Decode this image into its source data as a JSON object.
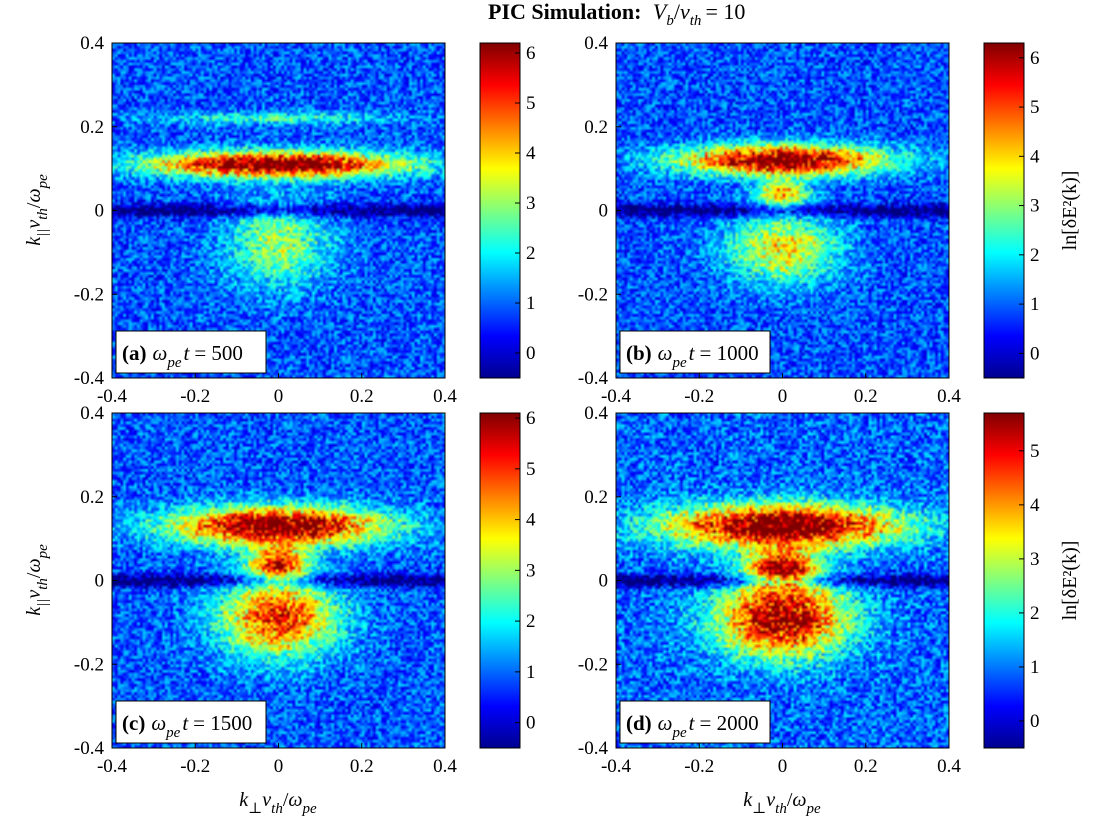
{
  "title": {
    "prefix": "PIC Simulation:",
    "expr": {
      "v1": "V",
      "v1sub": "b",
      "v2": "v",
      "v2sub": "th",
      "rhs": "= 10"
    }
  },
  "axes": {
    "x_label": {
      "k": "k",
      "sub1": "⊥",
      "v": "v",
      "sub2": "th",
      "w": "ω",
      "sub3": "pe"
    },
    "y_label": {
      "k": "k",
      "sub1": "||",
      "v": "v",
      "sub2": "th",
      "w": "ω",
      "sub3": "pe"
    },
    "x_ticks": [
      "-0.4",
      "-0.2",
      "0",
      "0.2",
      "0.4"
    ],
    "y_ticks": [
      "-0.4",
      "-0.2",
      "0",
      "0.2",
      "0.4"
    ]
  },
  "colorbar_label": "ln[δE²(k)]",
  "panels": [
    {
      "tag": "(a)",
      "value": "= 500"
    },
    {
      "tag": "(b)",
      "value": "= 1000"
    },
    {
      "tag": "(c)",
      "value": "= 1500"
    },
    {
      "tag": "(d)",
      "value": "= 2000"
    }
  ],
  "colors": {
    "low": "#00008f",
    "high": "#800000"
  },
  "chart_data": [
    {
      "type": "heatmap",
      "panel": "(a)",
      "x_range": [
        -0.4,
        0.4
      ],
      "y_range": [
        -0.4,
        0.4
      ],
      "colormap": "jet",
      "color_range": [
        -0.5,
        6.2
      ],
      "colorbar_ticks": [
        "0",
        "1",
        "2",
        "3",
        "4",
        "5",
        "6"
      ],
      "features": [
        {
          "kpar": 0.11,
          "kperp_width": 0.3,
          "kpar_width": 0.03,
          "peak": 6.0
        },
        {
          "kpar": 0.22,
          "kperp_width": 0.28,
          "kpar_width": 0.015,
          "peak": 1.5
        },
        {
          "kpar": -0.08,
          "kperp_width": 0.12,
          "kpar_width": 0.1,
          "peak": 2.2
        }
      ]
    },
    {
      "type": "heatmap",
      "panel": "(b)",
      "x_range": [
        -0.4,
        0.4
      ],
      "y_range": [
        -0.4,
        0.4
      ],
      "colormap": "jet",
      "color_range": [
        -0.5,
        6.3
      ],
      "colorbar_ticks": [
        "0",
        "1",
        "2",
        "3",
        "4",
        "5",
        "6"
      ],
      "features": [
        {
          "kpar": 0.12,
          "kperp_width": 0.24,
          "kpar_width": 0.035,
          "peak": 6.1
        },
        {
          "kpar": 0.04,
          "kperp_width": 0.06,
          "kpar_width": 0.03,
          "peak": 3.2
        },
        {
          "kpar": -0.09,
          "kperp_width": 0.13,
          "kpar_width": 0.08,
          "peak": 3.0
        }
      ]
    },
    {
      "type": "heatmap",
      "panel": "(c)",
      "x_range": [
        -0.4,
        0.4
      ],
      "y_range": [
        -0.4,
        0.4
      ],
      "colormap": "jet",
      "color_range": [
        -0.5,
        6.1
      ],
      "colorbar_ticks": [
        "0",
        "1",
        "2",
        "3",
        "4",
        "5",
        "6"
      ],
      "features": [
        {
          "kpar": 0.13,
          "kperp_width": 0.25,
          "kpar_width": 0.045,
          "peak": 5.8
        },
        {
          "kpar": 0.04,
          "kperp_width": 0.07,
          "kpar_width": 0.04,
          "peak": 4.0
        },
        {
          "kpar": -0.09,
          "kperp_width": 0.14,
          "kpar_width": 0.09,
          "peak": 4.2
        }
      ]
    },
    {
      "type": "heatmap",
      "panel": "(d)",
      "x_range": [
        -0.4,
        0.4
      ],
      "y_range": [
        -0.4,
        0.4
      ],
      "colormap": "jet",
      "color_range": [
        -0.5,
        5.7
      ],
      "colorbar_ticks": [
        "0",
        "1",
        "2",
        "3",
        "4",
        "5"
      ],
      "features": [
        {
          "kpar": 0.13,
          "kperp_width": 0.27,
          "kpar_width": 0.05,
          "peak": 5.6
        },
        {
          "kpar": 0.03,
          "kperp_width": 0.08,
          "kpar_width": 0.04,
          "peak": 4.3
        },
        {
          "kpar": -0.09,
          "kperp_width": 0.15,
          "kpar_width": 0.09,
          "peak": 5.0
        }
      ]
    }
  ]
}
